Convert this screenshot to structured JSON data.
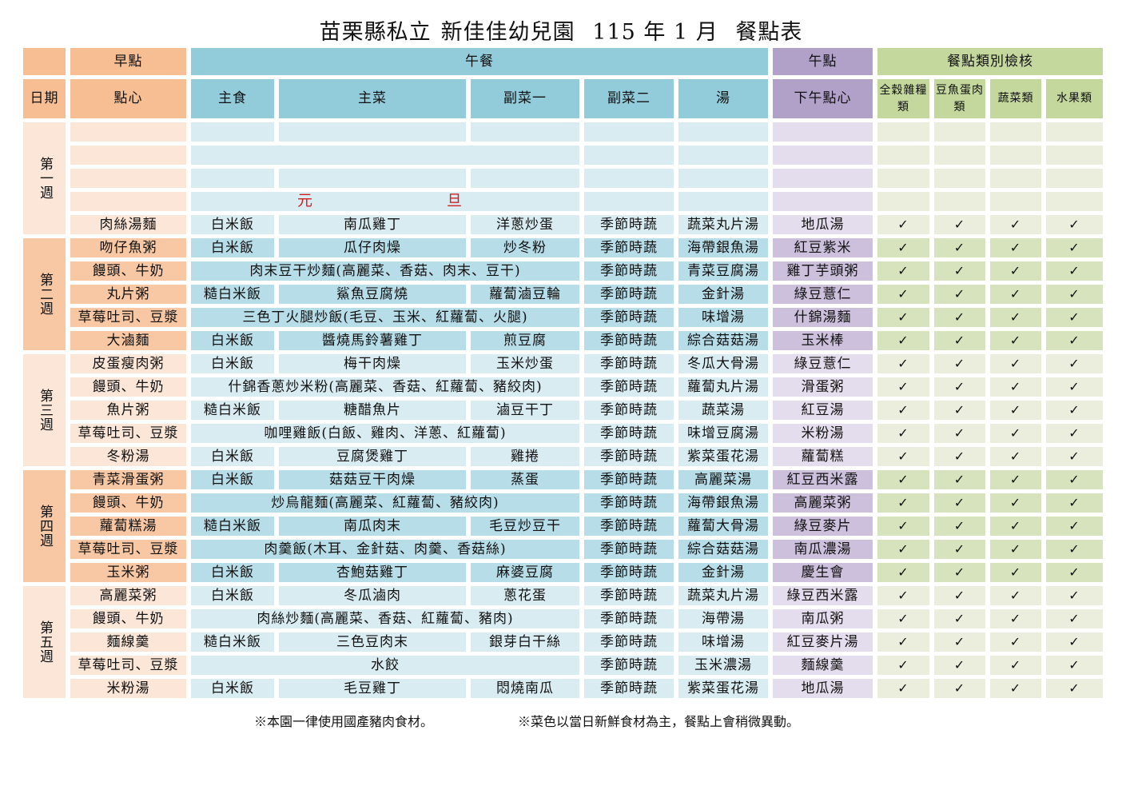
{
  "title": {
    "org": "苗栗縣私立",
    "school": "新佳佳幼兒園",
    "date": "115 年 1 月",
    "doc": "餐點表"
  },
  "header": {
    "groups": {
      "am": "早點",
      "lunch": "午餐",
      "pm": "午點",
      "check": "餐點類別檢核"
    },
    "cols": {
      "date": "日期",
      "am_snack": "點心",
      "staple": "主食",
      "main_dish": "主菜",
      "side1": "副菜一",
      "side2": "副菜二",
      "soup": "湯",
      "pm_snack": "下午點心",
      "grains": "全穀雜糧類",
      "protein": "豆魚蛋肉類",
      "veg": "蔬菜類",
      "fruit": "水果類"
    }
  },
  "holiday": {
    "c1": "元",
    "c2": "旦"
  },
  "check_mark": "✓",
  "weeks": [
    {
      "label": "第一週",
      "rows": [
        {
          "am": "",
          "staple": "",
          "main": "",
          "side1": "",
          "side2": "",
          "soup": "",
          "pm": "",
          "check": false
        },
        {
          "am": "",
          "combined": "",
          "side2": "",
          "soup": "",
          "pm": "",
          "check": false
        },
        {
          "am": "",
          "staple": "",
          "main": "",
          "side1": "",
          "side2": "",
          "soup": "",
          "pm": "",
          "check": false
        },
        {
          "am": "",
          "holiday": true,
          "side2": "",
          "soup": "",
          "pm": "",
          "check": false
        },
        {
          "am": "肉絲湯麵",
          "staple": "白米飯",
          "main": "南瓜雞丁",
          "side1": "洋蔥炒蛋",
          "side2": "季節時蔬",
          "soup": "蔬菜丸片湯",
          "pm": "地瓜湯",
          "check": true
        }
      ]
    },
    {
      "label": "第二週",
      "rows": [
        {
          "am": "吻仔魚粥",
          "staple": "白米飯",
          "main": "瓜仔肉燥",
          "side1": "炒冬粉",
          "side2": "季節時蔬",
          "soup": "海帶銀魚湯",
          "pm": "紅豆紫米",
          "check": true
        },
        {
          "am": "饅頭、牛奶",
          "combined": "肉末豆干炒麵(高麗菜、香菇、肉末、豆干)",
          "side2": "季節時蔬",
          "soup": "青菜豆腐湯",
          "pm": "雞丁芋頭粥",
          "check": true
        },
        {
          "am": "丸片粥",
          "staple": "糙白米飯",
          "main": "鯊魚豆腐燒",
          "side1": "蘿蔔滷豆輪",
          "side2": "季節時蔬",
          "soup": "金針湯",
          "pm": "綠豆薏仁",
          "check": true
        },
        {
          "am": "草莓吐司、豆漿",
          "combined": "三色丁火腿炒飯(毛豆、玉米、紅蘿蔔、火腿)",
          "side2": "季節時蔬",
          "soup": "味增湯",
          "pm": "什錦湯麵",
          "check": true
        },
        {
          "am": "大滷麵",
          "staple": "白米飯",
          "main": "醬燒馬鈴薯雞丁",
          "side1": "煎豆腐",
          "side2": "季節時蔬",
          "soup": "綜合菇菇湯",
          "pm": "玉米棒",
          "check": true
        }
      ]
    },
    {
      "label": "第三週",
      "rows": [
        {
          "am": "皮蛋瘦肉粥",
          "staple": "白米飯",
          "main": "梅干肉燥",
          "side1": "玉米炒蛋",
          "side2": "季節時蔬",
          "soup": "冬瓜大骨湯",
          "pm": "綠豆薏仁",
          "check": true
        },
        {
          "am": "饅頭、牛奶",
          "combined": "什錦香蔥炒米粉(高麗菜、香菇、紅蘿蔔、豬絞肉)",
          "side2": "季節時蔬",
          "soup": "蘿蔔丸片湯",
          "pm": "滑蛋粥",
          "check": true
        },
        {
          "am": "魚片粥",
          "staple": "糙白米飯",
          "main": "糖醋魚片",
          "side1": "滷豆干丁",
          "side2": "季節時蔬",
          "soup": "蔬菜湯",
          "pm": "紅豆湯",
          "check": true
        },
        {
          "am": "草莓吐司、豆漿",
          "combined": "咖哩雞飯(白飯、雞肉、洋蔥、紅蘿蔔)",
          "side2": "季節時蔬",
          "soup": "味增豆腐湯",
          "pm": "米粉湯",
          "check": true
        },
        {
          "am": "冬粉湯",
          "staple": "白米飯",
          "main": "豆腐煲雞丁",
          "side1": "雞捲",
          "side2": "季節時蔬",
          "soup": "紫菜蛋花湯",
          "pm": "蘿蔔糕",
          "check": true
        }
      ]
    },
    {
      "label": "第四週",
      "rows": [
        {
          "am": "青菜滑蛋粥",
          "staple": "白米飯",
          "main": "菇菇豆干肉燥",
          "side1": "蒸蛋",
          "side2": "季節時蔬",
          "soup": "高麗菜湯",
          "pm": "紅豆西米露",
          "check": true
        },
        {
          "am": "饅頭、牛奶",
          "combined": "炒烏龍麵(高麗菜、紅蘿蔔、豬絞肉)",
          "side2": "季節時蔬",
          "soup": "海帶銀魚湯",
          "pm": "高麗菜粥",
          "check": true
        },
        {
          "am": "蘿蔔糕湯",
          "staple": "糙白米飯",
          "main": "南瓜肉末",
          "side1": "毛豆炒豆干",
          "side2": "季節時蔬",
          "soup": "蘿蔔大骨湯",
          "pm": "綠豆麥片",
          "check": true
        },
        {
          "am": "草莓吐司、豆漿",
          "combined": "肉羹飯(木耳、金針菇、肉羹、香菇絲)",
          "side2": "季節時蔬",
          "soup": "綜合菇菇湯",
          "pm": "南瓜濃湯",
          "check": true
        },
        {
          "am": "玉米粥",
          "staple": "白米飯",
          "main": "杏鮑菇雞丁",
          "side1": "麻婆豆腐",
          "side2": "季節時蔬",
          "soup": "金針湯",
          "pm": "慶生會",
          "check": true
        }
      ]
    },
    {
      "label": "第五週",
      "rows": [
        {
          "am": "高麗菜粥",
          "staple": "白米飯",
          "main": "冬瓜滷肉",
          "side1": "蔥花蛋",
          "side2": "季節時蔬",
          "soup": "蔬菜丸片湯",
          "pm": "綠豆西米露",
          "check": true
        },
        {
          "am": "饅頭、牛奶",
          "combined": "肉絲炒麵(高麗菜、香菇、紅蘿蔔、豬肉)",
          "side2": "季節時蔬",
          "soup": "海帶湯",
          "pm": "南瓜粥",
          "check": true
        },
        {
          "am": "麵線羹",
          "staple": "糙白米飯",
          "main": "三色豆肉末",
          "side1": "銀芽白干絲",
          "side2": "季節時蔬",
          "soup": "味增湯",
          "pm": "紅豆麥片湯",
          "check": true
        },
        {
          "am": "草莓吐司、豆漿",
          "combined": "水餃",
          "side2": "季節時蔬",
          "soup": "玉米濃湯",
          "pm": "麵線羹",
          "check": true
        },
        {
          "am": "米粉湯",
          "staple": "白米飯",
          "main": "毛豆雞丁",
          "side1": "悶燒南瓜",
          "side2": "季節時蔬",
          "soup": "紫菜蛋花湯",
          "pm": "地瓜湯",
          "check": true
        }
      ]
    }
  ],
  "footer": {
    "note1": "※本園一律使用國產豬肉食材。",
    "note2": "※菜色以當日新鮮食材為主，餐點上會稍微異動。"
  }
}
